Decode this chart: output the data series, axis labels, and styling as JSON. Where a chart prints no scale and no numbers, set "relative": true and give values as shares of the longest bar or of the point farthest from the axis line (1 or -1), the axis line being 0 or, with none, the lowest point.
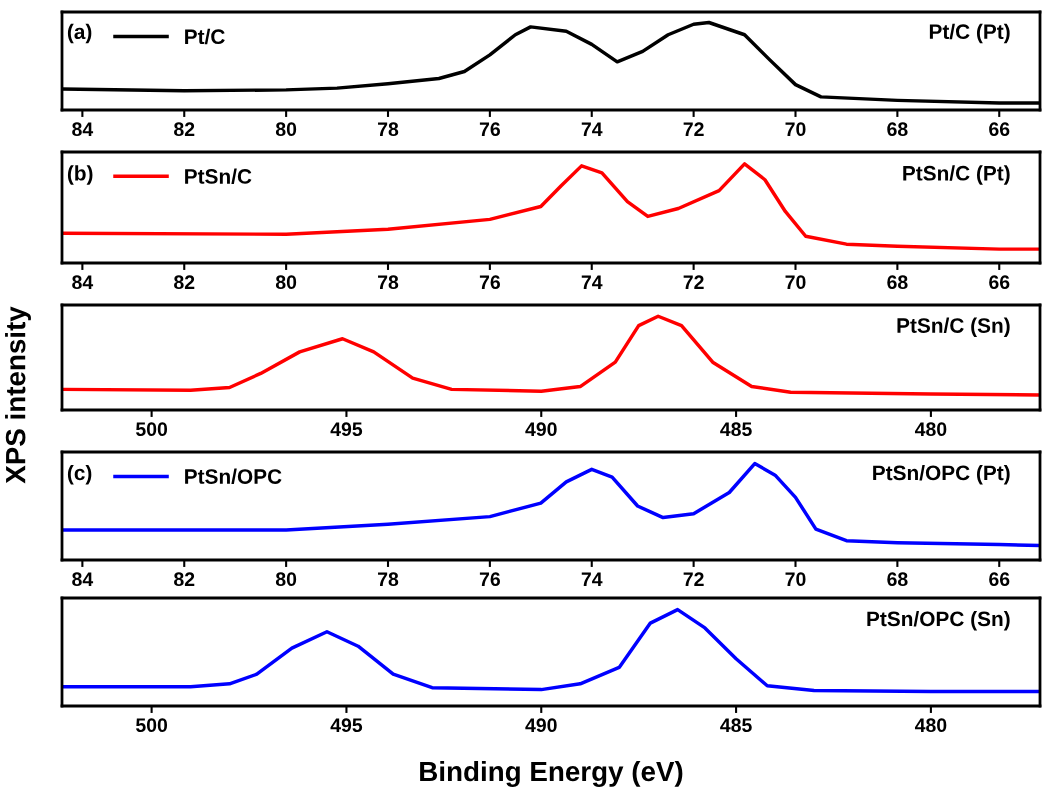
{
  "chart_data": [
    {
      "type": "line",
      "relative": true,
      "xlim": [
        84.4,
        65.2
      ],
      "xticks": [
        84,
        82,
        80,
        78,
        76,
        74,
        72,
        70,
        68,
        66
      ],
      "tick_labels": "x",
      "legend": "top left",
      "annotations": [
        "(a)",
        "Pt/C (Pt)"
      ],
      "x": [
        84.4,
        82,
        80,
        79,
        78,
        77,
        76.5,
        76,
        75.5,
        75.2,
        74.5,
        74,
        73.5,
        73,
        72.5,
        72,
        71.7,
        71,
        70.5,
        70,
        69.5,
        68,
        66,
        65.2
      ],
      "series": [
        {
          "name": "Pt/C",
          "color": "#000000",
          "values": [
            0.24,
            0.22,
            0.23,
            0.25,
            0.3,
            0.36,
            0.44,
            0.63,
            0.86,
            0.95,
            0.9,
            0.75,
            0.55,
            0.67,
            0.86,
            0.98,
            1.0,
            0.86,
            0.57,
            0.29,
            0.15,
            0.11,
            0.08,
            0.08
          ]
        }
      ]
    },
    {
      "type": "line",
      "relative": true,
      "xlim": [
        84.4,
        65.2
      ],
      "xticks": [
        84,
        82,
        80,
        78,
        76,
        74,
        72,
        70,
        68,
        66
      ],
      "tick_labels": "x",
      "legend": "top left",
      "annotations": [
        "(b)",
        "PtSn/C (Pt)"
      ],
      "x": [
        84.4,
        80,
        78,
        76,
        75,
        74.6,
        74.2,
        73.8,
        73.3,
        72.9,
        72.3,
        71.5,
        71.0,
        70.6,
        70.2,
        69.8,
        69,
        68,
        66,
        65.2
      ],
      "series": [
        {
          "name": "PtSn/C",
          "color": "#ff0000",
          "values": [
            0.3,
            0.29,
            0.34,
            0.44,
            0.57,
            0.78,
            0.98,
            0.91,
            0.62,
            0.47,
            0.55,
            0.73,
            1.0,
            0.84,
            0.52,
            0.27,
            0.19,
            0.17,
            0.14,
            0.14
          ]
        }
      ]
    },
    {
      "type": "line",
      "relative": true,
      "xlim": [
        502.3,
        477.2
      ],
      "xticks": [
        500,
        495,
        490,
        485,
        480
      ],
      "tick_labels": "x",
      "annotations": [
        "PtSn/C (Sn)"
      ],
      "ylabel": "XPS intensity",
      "x": [
        502.3,
        499,
        498,
        497.2,
        496.2,
        495.1,
        494.3,
        493.3,
        492.3,
        490,
        489,
        488.1,
        487.5,
        487.0,
        486.4,
        485.6,
        484.6,
        483.6,
        480,
        477.2
      ],
      "series": [
        {
          "color": "#ff0000",
          "values": [
            0.22,
            0.21,
            0.24,
            0.39,
            0.62,
            0.76,
            0.62,
            0.34,
            0.22,
            0.2,
            0.25,
            0.51,
            0.9,
            1.0,
            0.9,
            0.51,
            0.25,
            0.19,
            0.17,
            0.16
          ]
        }
      ]
    },
    {
      "type": "line",
      "relative": true,
      "xlim": [
        84.4,
        65.2
      ],
      "xticks": [
        84,
        82,
        80,
        78,
        76,
        74,
        72,
        70,
        68,
        66
      ],
      "tick_labels": "x",
      "legend": "top left",
      "annotations": [
        "(c)",
        "PtSn/OPC (Pt)"
      ],
      "x": [
        84.4,
        80,
        78,
        76,
        75,
        74.5,
        74.0,
        73.6,
        73.1,
        72.6,
        72,
        71.3,
        70.8,
        70.4,
        70,
        69.6,
        69,
        68,
        66,
        65.2
      ],
      "series": [
        {
          "name": "PtSn/OPC",
          "color": "#0000ff",
          "values": [
            0.31,
            0.31,
            0.37,
            0.45,
            0.59,
            0.81,
            0.94,
            0.86,
            0.56,
            0.44,
            0.48,
            0.7,
            1.0,
            0.88,
            0.65,
            0.32,
            0.2,
            0.18,
            0.16,
            0.15
          ]
        }
      ]
    },
    {
      "type": "line",
      "relative": true,
      "xlim": [
        502.3,
        477.2
      ],
      "xticks": [
        500,
        495,
        490,
        485,
        480
      ],
      "tick_labels": "x",
      "annotations": [
        "PtSn/OPC (Sn)"
      ],
      "xlabel": "Binding Energy (eV)",
      "x": [
        502.3,
        499,
        498,
        497.3,
        496.4,
        495.5,
        494.7,
        493.8,
        492.8,
        490,
        489,
        488,
        487.2,
        486.5,
        485.8,
        485,
        484.2,
        483,
        480,
        477.2
      ],
      "series": [
        {
          "color": "#0000ff",
          "values": [
            0.2,
            0.2,
            0.23,
            0.33,
            0.6,
            0.77,
            0.62,
            0.33,
            0.19,
            0.17,
            0.23,
            0.4,
            0.86,
            1.0,
            0.81,
            0.49,
            0.21,
            0.16,
            0.15,
            0.15
          ]
        }
      ]
    }
  ]
}
